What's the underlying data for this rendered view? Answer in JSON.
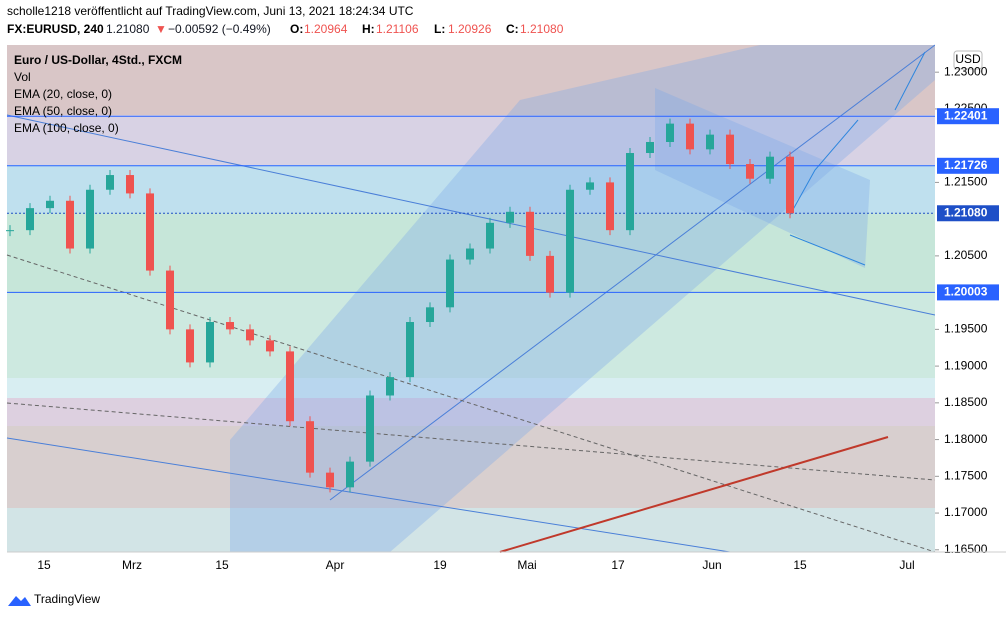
{
  "header": {
    "publisher": "scholle1218 veröffentlicht auf TradingView.com, Juni 13, 2021 18:24:34 UTC",
    "symbol": "FX:EURUSD, 240",
    "last": "1.21080",
    "arrow": "▼",
    "change": "−0.00592 (−0.49%)",
    "ohlc": [
      {
        "key": "O:",
        "value": "1.20964"
      },
      {
        "key": "H:",
        "value": "1.21106"
      },
      {
        "key": "L:",
        "value": "1.20926"
      },
      {
        "key": "C:",
        "value": "1.21080"
      }
    ]
  },
  "legend": [
    "Euro / US-Dollar, 4Std., FXCM",
    "Vol",
    "EMA (20, close, 0)",
    "EMA (50, close, 0)",
    "EMA (100, close, 0)"
  ],
  "currency": "USD",
  "chart": {
    "ylim": [
      1.1647,
      1.2337
    ],
    "yticks": [
      {
        "value": 1.23,
        "label": "1.23000"
      },
      {
        "value": 1.225,
        "label": "1.22500"
      },
      {
        "value": 1.215,
        "label": "1.21500"
      },
      {
        "value": 1.205,
        "label": "1.20500"
      },
      {
        "value": 1.195,
        "label": "1.19500"
      },
      {
        "value": 1.19,
        "label": "1.19000"
      },
      {
        "value": 1.185,
        "label": "1.18500"
      },
      {
        "value": 1.18,
        "label": "1.18000"
      },
      {
        "value": 1.175,
        "label": "1.17500"
      },
      {
        "value": 1.17,
        "label": "1.17000"
      },
      {
        "value": 1.165,
        "label": "1.16500"
      }
    ],
    "price_labels": [
      {
        "value": 1.22401,
        "label": "1.22401",
        "color": "#2962ff"
      },
      {
        "value": 1.21726,
        "label": "1.21726",
        "color": "#2962ff"
      },
      {
        "value": 1.2108,
        "label": "1.21080",
        "color": "#1e4fc7"
      },
      {
        "value": 1.20003,
        "label": "1.20003",
        "color": "#2962ff"
      }
    ],
    "date_labels": [
      "15",
      "Mrz",
      "15",
      "Apr",
      "19",
      "Mai",
      "17",
      "Jun",
      "15",
      "Jul"
    ],
    "closes": [
      1.2085,
      1.2115,
      1.2125,
      1.206,
      1.214,
      1.216,
      1.2135,
      1.203,
      1.195,
      1.1905,
      1.196,
      1.195,
      1.1935,
      1.192,
      1.1825,
      1.1755,
      1.1735,
      1.177,
      1.186,
      1.1885,
      1.196,
      1.198,
      1.2045,
      1.206,
      1.2095,
      1.211,
      1.205,
      1.2,
      1.214,
      1.215,
      1.2085,
      1.219,
      1.2205,
      1.223,
      1.2195,
      1.2215,
      1.2175,
      1.2155,
      1.2185,
      1.2108
    ],
    "up_color": "#26a69a",
    "down_color": "#ef5350"
  },
  "footer": "TradingView"
}
